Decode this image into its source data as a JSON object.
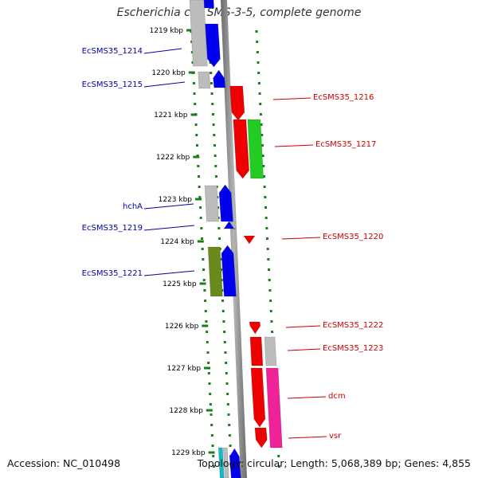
{
  "title": "Escherichia coli SMS-3-5, complete genome",
  "accession": "Accession: NC_010498",
  "topology": "Topology: circular; Length: 5,068,389 bp; Genes: 4,855",
  "colors": {
    "axis": "#808080",
    "ruler_tick": "#1a7f1a",
    "label_left": "#0000aa",
    "label_right": "#cc0000",
    "red": "#ee0000",
    "blue": "#0000ee",
    "green": "#22cc22",
    "olive": "#6b8a1e",
    "gray": "#bcbcbc",
    "magenta": "#ee2299",
    "cyan": "#11bbcc"
  },
  "ruler_labels": [
    "1219 kbp",
    "1220 kbp",
    "1221 kbp",
    "1222 kbp",
    "1223 kbp",
    "1224 kbp",
    "1225 kbp",
    "1226 kbp",
    "1227 kbp",
    "1228 kbp",
    "1229 kbp"
  ],
  "left_genes": [
    {
      "label": "EcSMS35_1214",
      "track": "gray"
    },
    {
      "label": "EcSMS35_1215",
      "track": "gray"
    },
    {
      "label": "hchA",
      "track": "gray"
    },
    {
      "label": "EcSMS35_1219",
      "track": "blue"
    },
    {
      "label": "EcSMS35_1221",
      "track": "olive"
    }
  ],
  "right_genes": [
    {
      "label": "EcSMS35_1216",
      "track": "red"
    },
    {
      "label": "EcSMS35_1217",
      "track": "green"
    },
    {
      "label": "EcSMS35_1220",
      "track": "red"
    },
    {
      "label": "EcSMS35_1222",
      "track": "red"
    },
    {
      "label": "EcSMS35_1223",
      "track": "gray"
    },
    {
      "label": "dcm",
      "track": "red"
    },
    {
      "label": "vsr",
      "track": "red"
    }
  ]
}
